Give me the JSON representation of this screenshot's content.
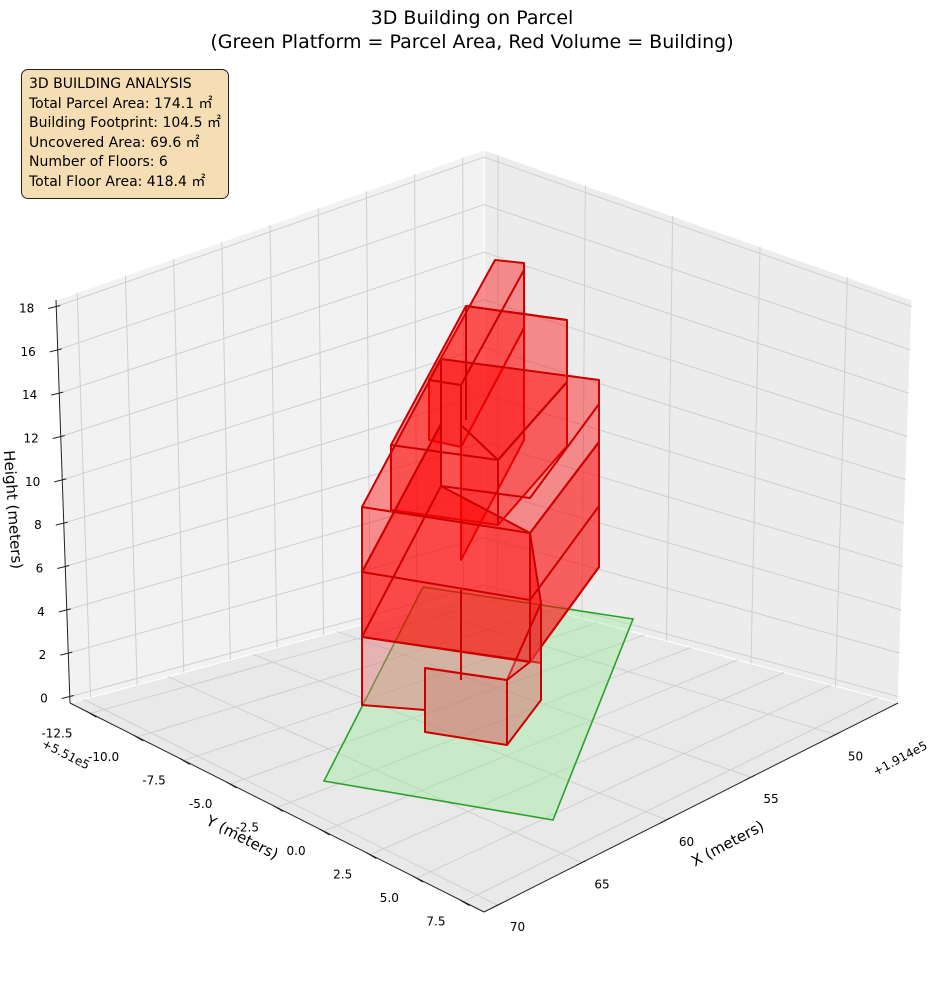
{
  "chart_data": {
    "type": "3d-polygons",
    "title_line1": "3D Building on Parcel",
    "title_line2": "(Green Platform = Parcel Area, Red Volume = Building)",
    "xlabel": "X (meters)",
    "ylabel": "Y (meters)",
    "zlabel": "Height (meters)",
    "x_offset_label": "+1.914e5",
    "y_offset_label": "+5.51e5",
    "x_ticks": [
      "50",
      "55",
      "60",
      "65",
      "70"
    ],
    "y_ticks": [
      "-12.5",
      "-10.0",
      "-7.5",
      "-5.0",
      "-2.5",
      "0.0",
      "2.5",
      "5.0",
      "7.5"
    ],
    "z_ticks": [
      "0",
      "2",
      "4",
      "6",
      "8",
      "10",
      "12",
      "14",
      "16",
      "18"
    ],
    "grid": true,
    "series": [
      {
        "name": "Green Platform = Parcel Area",
        "color": "#90ee90",
        "edge": "#2ca02c"
      },
      {
        "name": "Red Volume = Building",
        "color": "#ff0000",
        "edge": "#cc0000"
      }
    ],
    "floors": 6
  },
  "info": {
    "heading": "3D BUILDING ANALYSIS",
    "lines": [
      "Total Parcel Area: 174.1 ㎡",
      "Building Footprint: 104.5 ㎡",
      "Uncovered Area: 69.6 ㎡",
      "Number of Floors: 6",
      "Total Floor Area: 418.4 ㎡"
    ]
  }
}
